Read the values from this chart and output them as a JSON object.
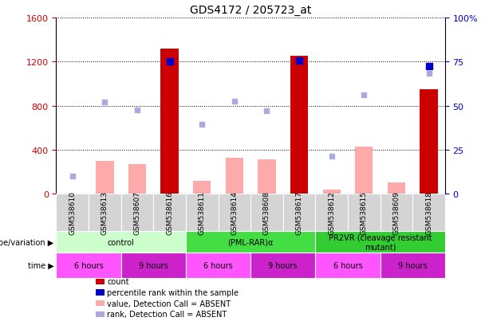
{
  "title": "GDS4172 / 205723_at",
  "samples": [
    "GSM538610",
    "GSM538613",
    "GSM538607",
    "GSM538616",
    "GSM538611",
    "GSM538614",
    "GSM538608",
    "GSM538617",
    "GSM538612",
    "GSM538615",
    "GSM538609",
    "GSM538618"
  ],
  "count_present": [
    null,
    null,
    null,
    1320,
    null,
    null,
    null,
    1255,
    null,
    null,
    null,
    950
  ],
  "count_absent": [
    null,
    300,
    270,
    null,
    120,
    325,
    315,
    null,
    38,
    430,
    100,
    null
  ],
  "rank_present": [
    null,
    null,
    null,
    75,
    null,
    null,
    null,
    75.6,
    null,
    null,
    null,
    72.5
  ],
  "rank_absent": [
    10,
    52,
    47.5,
    null,
    39.5,
    52.5,
    47,
    null,
    21.5,
    56,
    null,
    68.5
  ],
  "ylim": [
    0,
    1600
  ],
  "y2lim": [
    0,
    100
  ],
  "yticks": [
    0,
    400,
    800,
    1200,
    1600
  ],
  "y2ticks": [
    0,
    25,
    50,
    75,
    100
  ],
  "genotype_groups": [
    {
      "label": "control",
      "start": 0,
      "end": 4,
      "color": "#ccffcc"
    },
    {
      "label": "(PML-RAR)α",
      "start": 4,
      "end": 8,
      "color": "#44dd44"
    },
    {
      "label": "PR2VR (cleavage resistant\nmutant)",
      "start": 8,
      "end": 12,
      "color": "#33cc33"
    }
  ],
  "time_groups": [
    {
      "label": "6 hours",
      "start": 0,
      "end": 2,
      "color": "#ff55ff"
    },
    {
      "label": "9 hours",
      "start": 2,
      "end": 4,
      "color": "#cc22cc"
    },
    {
      "label": "6 hours",
      "start": 4,
      "end": 6,
      "color": "#ff55ff"
    },
    {
      "label": "9 hours",
      "start": 6,
      "end": 8,
      "color": "#cc22cc"
    },
    {
      "label": "6 hours",
      "start": 8,
      "end": 10,
      "color": "#ff55ff"
    },
    {
      "label": "9 hours",
      "start": 10,
      "end": 12,
      "color": "#cc22cc"
    }
  ],
  "count_color": "#cc0000",
  "count_absent_color": "#ffaaaa",
  "rank_color": "#0000cc",
  "rank_absent_color": "#aaaadd",
  "bar_width": 0.55
}
